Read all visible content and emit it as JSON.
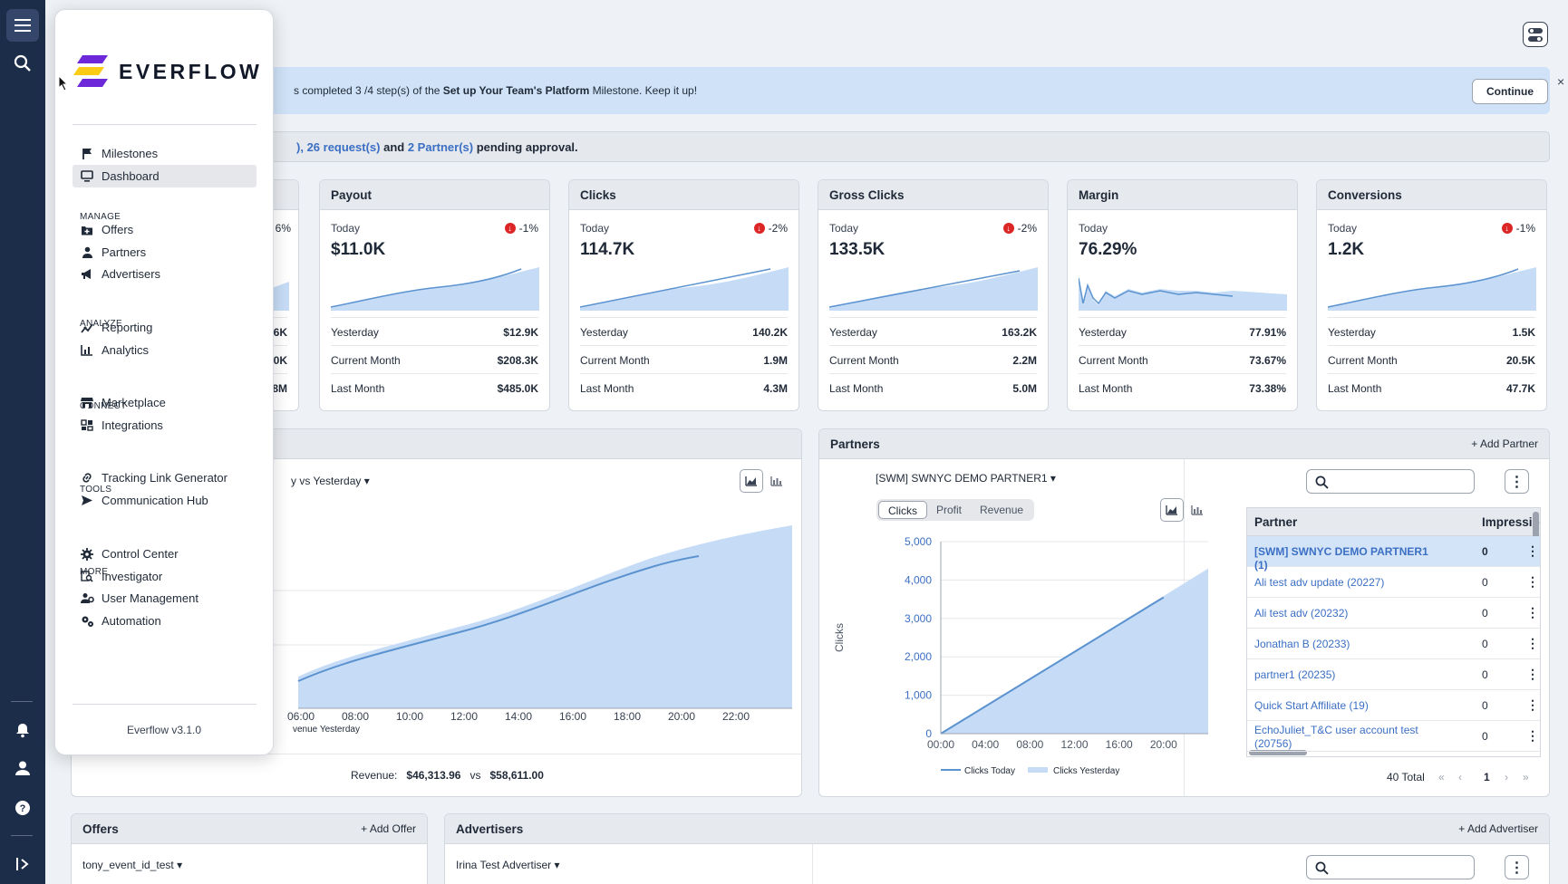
{
  "app": {
    "name": "EVERFLOW",
    "version": "Everflow v3.1.0"
  },
  "banner": {
    "prefix": "s completed 3 /4 step(s) of the ",
    "milestone": "Set up Your Team's Platform",
    "suffix": " Milestone. Keep it up!",
    "continue_label": "Continue",
    "close": "×"
  },
  "pending": {
    "lead": "), ",
    "requests": "26 request(s)",
    "mid": " and ",
    "partners": "2 Partner(s)",
    "tail": " pending approval."
  },
  "kpis": [
    {
      "title": "Payout",
      "today_label": "Today",
      "value": "$11.0K",
      "change": "-1%",
      "rows": [
        [
          "Yesterday",
          "$12.9K"
        ],
        [
          "Current Month",
          "$208.3K"
        ],
        [
          "Last Month",
          "$485.0K"
        ]
      ]
    },
    {
      "title": "Clicks",
      "today_label": "Today",
      "value": "114.7K",
      "change": "-2%",
      "rows": [
        [
          "Yesterday",
          "140.2K"
        ],
        [
          "Current Month",
          "1.9M"
        ],
        [
          "Last Month",
          "4.3M"
        ]
      ]
    },
    {
      "title": "Gross Clicks",
      "today_label": "Today",
      "value": "133.5K",
      "change": "-2%",
      "rows": [
        [
          "Yesterday",
          "163.2K"
        ],
        [
          "Current Month",
          "2.2M"
        ],
        [
          "Last Month",
          "5.0M"
        ]
      ]
    },
    {
      "title": "Margin",
      "today_label": "Today",
      "value": "76.29%",
      "change": "",
      "rows": [
        [
          "Yesterday",
          "77.91%"
        ],
        [
          "Current Month",
          "73.67%"
        ],
        [
          "Last Month",
          "73.38%"
        ]
      ]
    },
    {
      "title": "Conversions",
      "today_label": "Today",
      "value": "1.2K",
      "change": "-1%",
      "rows": [
        [
          "Yesterday",
          "1.5K"
        ],
        [
          "Current Month",
          "20.5K"
        ],
        [
          "Last Month",
          "47.7K"
        ]
      ]
    }
  ],
  "partial_kpi": {
    "change": "6%",
    "rows": [
      "6K",
      "0K",
      "8M"
    ]
  },
  "revenue_chart": {
    "compare_label": "y vs Yesterday",
    "x_ticks": [
      "06:00",
      "08:00",
      "10:00",
      "12:00",
      "14:00",
      "16:00",
      "18:00",
      "20:00",
      "22:00"
    ],
    "legend_partial": "venue Yesterday",
    "revenue_label": "Revenue:",
    "revenue_today": "$46,313.96",
    "vs": "vs",
    "revenue_yesterday": "$58,611.00"
  },
  "partners": {
    "title": "Partners",
    "add_label": "+ Add Partner",
    "selected": "[SWM] SWNYC DEMO PARTNER1",
    "tabs": [
      "Clicks",
      "Profit",
      "Revenue"
    ],
    "col_partner": "Partner",
    "col_impressions": "Impression",
    "rows": [
      {
        "name": "[SWM] SWNYC DEMO PARTNER1 (1)",
        "imp": "0"
      },
      {
        "name": "Ali test adv update (20227)",
        "imp": "0"
      },
      {
        "name": "Ali test adv (20232)",
        "imp": "0"
      },
      {
        "name": "Jonathan B (20233)",
        "imp": "0"
      },
      {
        "name": "partner1 (20235)",
        "imp": "0"
      },
      {
        "name": "Quick Start Affiliate (19)",
        "imp": "0"
      },
      {
        "name": "EchoJuliet_T&C user account test (20756)",
        "imp": "0"
      }
    ],
    "total": "40 Total",
    "page": "1"
  },
  "chart_data": {
    "type": "line",
    "title": "",
    "ylabel": "Clicks",
    "xlabel": "",
    "ylim": [
      0,
      5000
    ],
    "y_ticks": [
      "5,000",
      "4,000",
      "3,000",
      "2,000",
      "1,000",
      "0"
    ],
    "x_ticks": [
      "00:00",
      "04:00",
      "08:00",
      "12:00",
      "16:00",
      "20:00"
    ],
    "series": [
      {
        "name": "Clicks Today",
        "x": [
          0,
          20
        ],
        "values": [
          0,
          3550
        ]
      },
      {
        "name": "Clicks Yesterday",
        "x": [
          0,
          24
        ],
        "values": [
          0,
          4300
        ]
      }
    ]
  },
  "offers": {
    "title": "Offers",
    "add_label": "+ Add Offer",
    "selected": "tony_event_id_test"
  },
  "advertisers": {
    "title": "Advertisers",
    "add_label": "+ Add Advertiser",
    "selected": "Irina Test Advertiser"
  },
  "sidebar": {
    "top": [
      {
        "label": "Milestones",
        "icon": "flag-icon"
      },
      {
        "label": "Dashboard",
        "icon": "monitor-icon"
      }
    ],
    "sections": [
      {
        "title": "MANAGE",
        "items": [
          "Offers",
          "Partners",
          "Advertisers"
        ]
      },
      {
        "title": "ANALYZE",
        "items": [
          "Reporting",
          "Analytics"
        ]
      },
      {
        "title": "CONNECT",
        "items": [
          "Marketplace",
          "Integrations"
        ]
      },
      {
        "title": "TOOLS",
        "items": [
          "Tracking Link Generator",
          "Communication Hub"
        ]
      },
      {
        "title": "MORE",
        "items": [
          "Control Center",
          "Investigator",
          "User Management",
          "Automation"
        ]
      }
    ]
  },
  "colors": {
    "rail": "#1c2d4a",
    "accent": "#3b6fc4",
    "area": "#c6dcf6",
    "line": "#5b92d0"
  }
}
